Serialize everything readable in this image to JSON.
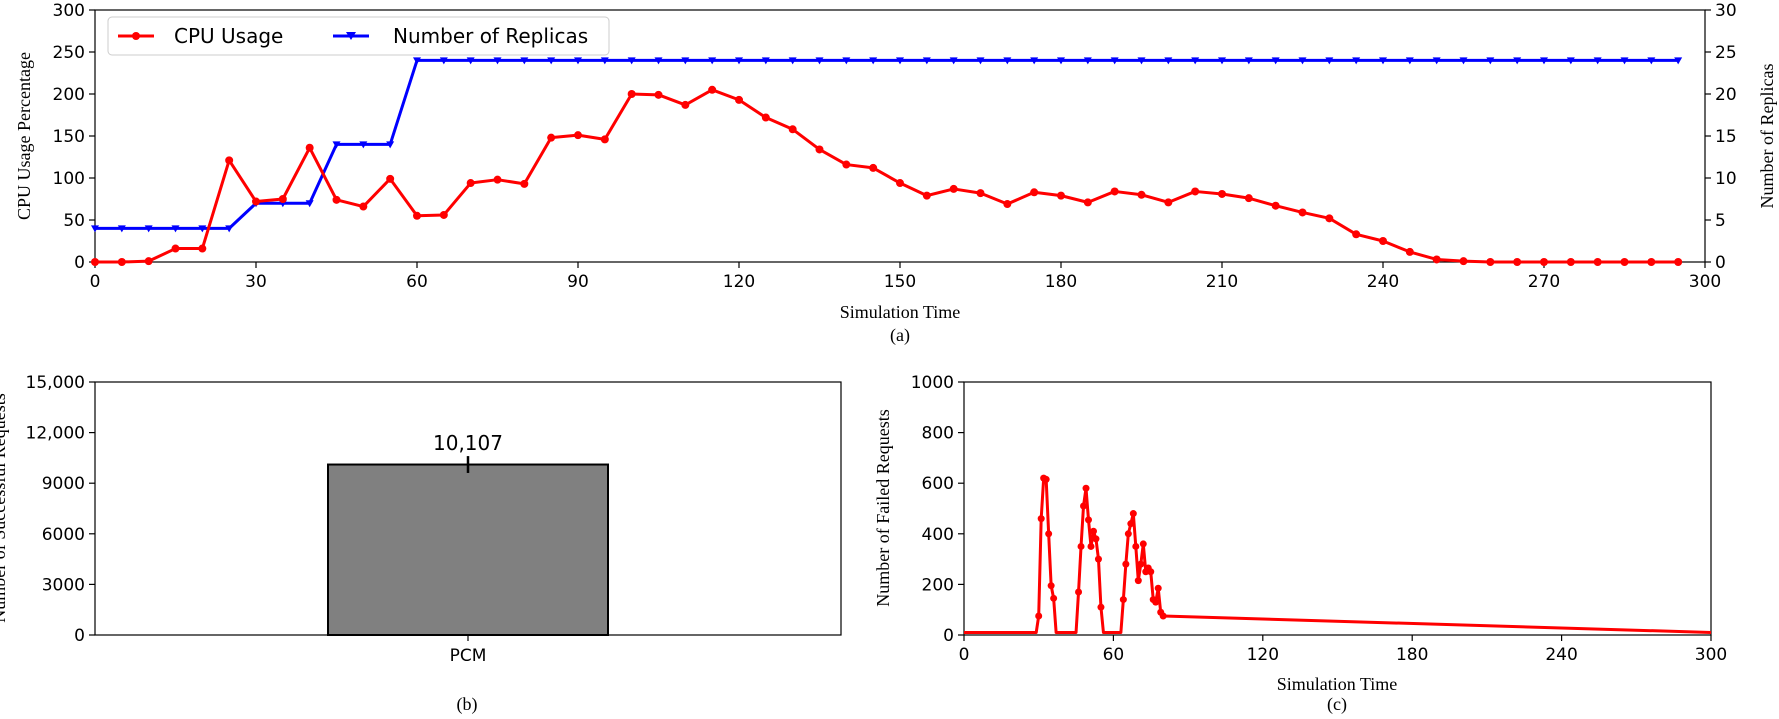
{
  "chart_data": [
    {
      "panel": "(a)",
      "type": "line",
      "xlabel": "Simulation Time",
      "ylabel": "CPU Usage Percentage",
      "y2label": "Number of Replicas",
      "xlim": [
        0,
        300
      ],
      "ylim": [
        0,
        300
      ],
      "y2lim": [
        0,
        30
      ],
      "xticks": [
        0,
        30,
        60,
        90,
        120,
        150,
        180,
        210,
        240,
        270,
        300
      ],
      "yticks": [
        0,
        50,
        100,
        150,
        200,
        250,
        300
      ],
      "y2ticks": [
        0,
        5,
        10,
        15,
        20,
        25,
        30
      ],
      "legend_position": "top-left",
      "series": [
        {
          "name": "CPU Usage",
          "axis": "left",
          "color": "#ff0000",
          "marker": "circle",
          "x": [
            0,
            5,
            10,
            15,
            20,
            25,
            30,
            35,
            40,
            45,
            50,
            55,
            60,
            65,
            70,
            75,
            80,
            85,
            90,
            95,
            100,
            105,
            110,
            115,
            120,
            125,
            130,
            135,
            140,
            145,
            150,
            155,
            160,
            165,
            170,
            175,
            180,
            185,
            190,
            195,
            200,
            205,
            210,
            215,
            220,
            225,
            230,
            235,
            240,
            245,
            250,
            255,
            260,
            265,
            270,
            275,
            280,
            285,
            290,
            295
          ],
          "values": [
            0,
            0,
            1,
            16,
            16,
            121,
            72,
            75,
            136,
            74,
            66,
            99,
            55,
            56,
            94,
            98,
            93,
            148,
            151,
            146,
            200,
            199,
            187,
            205,
            193,
            172,
            158,
            134,
            116,
            112,
            94,
            79,
            87,
            82,
            69,
            83,
            79,
            71,
            84,
            80,
            71,
            84,
            81,
            76,
            67,
            59,
            52,
            33,
            25,
            12,
            3,
            1,
            0,
            0,
            0,
            0,
            0,
            0,
            0,
            0
          ]
        },
        {
          "name": "Number of Replicas",
          "axis": "right",
          "color": "#0000ff",
          "marker": "tri_down",
          "x": [
            0,
            5,
            10,
            15,
            20,
            25,
            30,
            35,
            40,
            45,
            50,
            55,
            60,
            65,
            70,
            75,
            80,
            85,
            90,
            95,
            100,
            105,
            110,
            115,
            120,
            125,
            130,
            135,
            140,
            145,
            150,
            155,
            160,
            165,
            170,
            175,
            180,
            185,
            190,
            195,
            200,
            205,
            210,
            215,
            220,
            225,
            230,
            235,
            240,
            245,
            250,
            255,
            260,
            265,
            270,
            275,
            280,
            285,
            290,
            295
          ],
          "values": [
            4,
            4,
            4,
            4,
            4,
            4,
            7,
            7,
            7,
            14,
            14,
            14,
            24,
            24,
            24,
            24,
            24,
            24,
            24,
            24,
            24,
            24,
            24,
            24,
            24,
            24,
            24,
            24,
            24,
            24,
            24,
            24,
            24,
            24,
            24,
            24,
            24,
            24,
            24,
            24,
            24,
            24,
            24,
            24,
            24,
            24,
            24,
            24,
            24,
            24,
            24,
            24,
            24,
            24,
            24,
            24,
            24,
            24,
            24,
            24
          ]
        }
      ]
    },
    {
      "panel": "(b)",
      "type": "bar",
      "categories": [
        "PCM"
      ],
      "values": [
        10107
      ],
      "error": [
        500
      ],
      "data_label": "10,107",
      "ylim": [
        0,
        15000
      ],
      "yticks": [
        "0",
        "3000",
        "6000",
        "9000",
        "12,000",
        "15,000"
      ],
      "ytick_values": [
        0,
        3000,
        6000,
        9000,
        12000,
        15000
      ],
      "bar_color": "#808080"
    },
    {
      "panel": "(c)",
      "type": "line",
      "xlabel": "Simulation Time",
      "ylabel": "Number of Failed Requests",
      "xlim": [
        0,
        300
      ],
      "ylim": [
        0,
        1000
      ],
      "xticks": [
        0,
        60,
        120,
        180,
        240,
        300
      ],
      "yticks": [
        0,
        200,
        400,
        600,
        800,
        1000
      ],
      "color": "#ff0000",
      "x": [
        0,
        29,
        30,
        31,
        32,
        33,
        34,
        35,
        36,
        37,
        45,
        46,
        47,
        48,
        49,
        50,
        51,
        52,
        53,
        54,
        55,
        56,
        63,
        64,
        65,
        66,
        67,
        68,
        69,
        70,
        71,
        72,
        73,
        74,
        75,
        76,
        77,
        78,
        79,
        80,
        300
      ],
      "values": [
        10,
        10,
        75,
        460,
        620,
        615,
        400,
        195,
        145,
        10,
        10,
        170,
        350,
        510,
        580,
        455,
        350,
        410,
        380,
        300,
        110,
        10,
        10,
        140,
        280,
        400,
        440,
        480,
        350,
        215,
        280,
        360,
        250,
        265,
        250,
        140,
        130,
        185,
        90,
        75,
        10
      ]
    }
  ],
  "captions": {
    "a": "(a)",
    "b": "(b)",
    "c": "(c)"
  },
  "partial_ylabel_b": "Number of Successful Requests"
}
